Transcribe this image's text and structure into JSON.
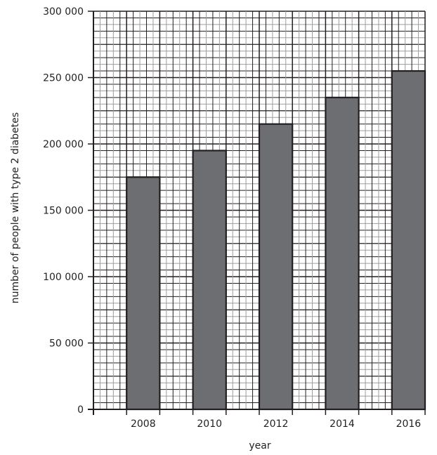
{
  "chart_data": {
    "type": "bar",
    "title": "",
    "xlabel": "year",
    "ylabel": "number of people with type 2 diabetes",
    "categories": [
      "2008",
      "2010",
      "2012",
      "2014",
      "2016"
    ],
    "values": [
      175000,
      195000,
      215000,
      235000,
      255000
    ],
    "ylim": [
      0,
      300000
    ],
    "yticks": [
      0,
      50000,
      100000,
      150000,
      200000,
      250000,
      300000
    ],
    "ytick_labels": [
      "0",
      "50 000",
      "100 000",
      "150 000",
      "200 000",
      "250 000",
      "300 000"
    ],
    "grid": true,
    "legend": null,
    "bar_color": "#6d6e71",
    "bar_edge_color": "#231f20"
  }
}
